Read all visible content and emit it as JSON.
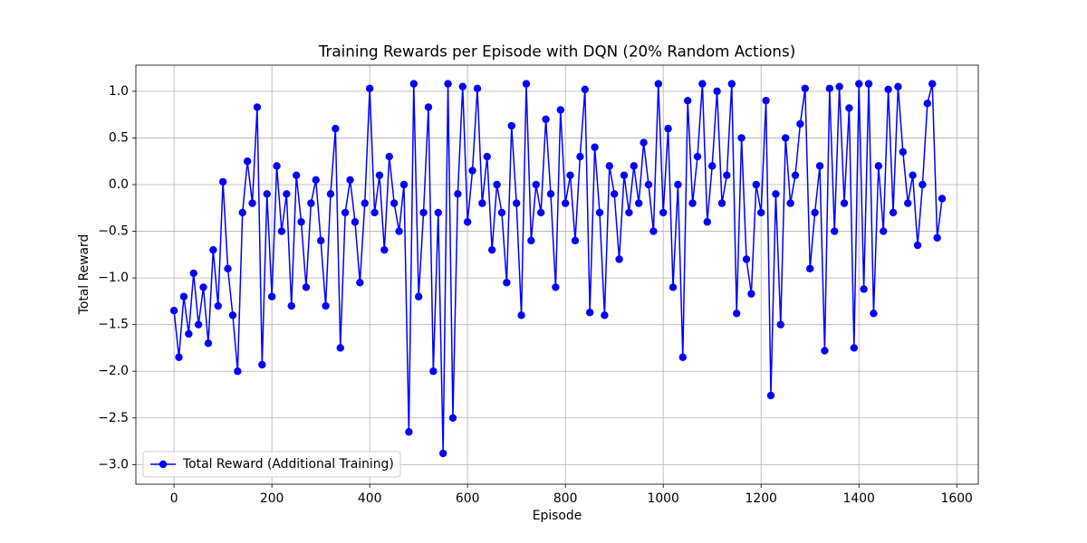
{
  "chart_data": {
    "type": "line",
    "title": "Training Rewards per Episode with DQN (20% Random Actions)",
    "x_label": "Episode",
    "y_label": "Total Reward",
    "x": [
      0,
      10,
      20,
      30,
      40,
      50,
      60,
      70,
      80,
      90,
      100,
      110,
      120,
      130,
      140,
      150,
      160,
      170,
      180,
      190,
      200,
      210,
      220,
      230,
      240,
      250,
      260,
      270,
      280,
      290,
      300,
      310,
      320,
      330,
      340,
      350,
      360,
      370,
      380,
      390,
      400,
      410,
      420,
      430,
      440,
      450,
      460,
      470,
      480,
      490,
      500,
      510,
      520,
      530,
      540,
      550,
      560,
      570,
      580,
      590,
      600,
      610,
      620,
      630,
      640,
      650,
      660,
      670,
      680,
      690,
      700,
      710,
      720,
      730,
      740,
      750,
      760,
      770,
      780,
      790,
      800,
      810,
      820,
      830,
      840,
      850,
      860,
      870,
      880,
      890,
      900,
      910,
      920,
      930,
      940,
      950,
      960,
      970,
      980,
      990,
      1000,
      1010,
      1020,
      1030,
      1040,
      1050,
      1060,
      1070,
      1080,
      1090,
      1100,
      1110,
      1120,
      1130,
      1140,
      1150,
      1160,
      1170,
      1180,
      1190,
      1200,
      1210,
      1220,
      1230,
      1240,
      1250,
      1260,
      1270,
      1280,
      1290,
      1300,
      1310,
      1320,
      1330,
      1340,
      1350,
      1360,
      1370,
      1380,
      1390,
      1400,
      1410,
      1420,
      1430,
      1440,
      1450,
      1460,
      1470,
      1480,
      1490,
      1500,
      1510,
      1520,
      1530,
      1540,
      1550,
      1560,
      1570
    ],
    "series": [
      {
        "name": "Total Reward (Additional Training)",
        "color": "#0000ff",
        "values": [
          -1.35,
          -1.85,
          -1.2,
          -1.6,
          -0.95,
          -1.5,
          -1.1,
          -1.7,
          -0.7,
          -1.3,
          0.03,
          -0.9,
          -1.4,
          -2.0,
          -0.3,
          0.25,
          -0.2,
          0.83,
          -1.93,
          -0.1,
          -1.2,
          0.2,
          -0.5,
          -0.1,
          -1.3,
          0.1,
          -0.4,
          -1.1,
          -0.2,
          0.05,
          -0.6,
          -1.3,
          -0.1,
          0.6,
          -1.75,
          -0.3,
          0.05,
          -0.4,
          -1.05,
          -0.2,
          1.03,
          -0.3,
          0.1,
          -0.7,
          0.3,
          -0.2,
          -0.5,
          0.0,
          -2.65,
          1.08,
          -1.2,
          -0.3,
          0.83,
          -2.0,
          -0.3,
          -2.88,
          1.08,
          -2.5,
          -0.1,
          1.05,
          -0.4,
          0.15,
          1.03,
          -0.2,
          0.3,
          -0.7,
          0.0,
          -0.3,
          -1.05,
          0.63,
          -0.2,
          -1.4,
          1.08,
          -0.6,
          0.0,
          -0.3,
          0.7,
          -0.1,
          -1.1,
          0.8,
          -0.2,
          0.1,
          -0.6,
          0.3,
          1.02,
          -1.37,
          0.4,
          -0.3,
          -1.4,
          0.2,
          -0.1,
          -0.8,
          0.1,
          -0.3,
          0.2,
          -0.2,
          0.45,
          0.0,
          -0.5,
          1.08,
          -0.3,
          0.6,
          -1.1,
          0.0,
          -1.85,
          0.9,
          -0.2,
          0.3,
          1.08,
          -0.4,
          0.2,
          1.0,
          -0.2,
          0.1,
          1.08,
          -1.38,
          0.5,
          -0.8,
          -1.17,
          0.0,
          -0.3,
          0.9,
          -2.26,
          -0.1,
          -1.5,
          0.5,
          -0.2,
          0.1,
          0.65,
          1.03,
          -0.9,
          -0.3,
          0.2,
          -1.78,
          1.03,
          -0.5,
          1.05,
          -0.2,
          0.82,
          -1.75,
          1.08,
          -1.12,
          1.08,
          -1.38,
          0.2,
          -0.5,
          1.02,
          -0.3,
          1.05,
          0.35,
          -0.2,
          0.1,
          -0.65,
          0.0,
          0.87,
          1.08,
          -0.57,
          -0.15
        ]
      }
    ],
    "xlim": [
      -78,
      1644
    ],
    "ylim": [
      -3.21,
      1.28
    ],
    "xticks": [
      0,
      200,
      400,
      600,
      800,
      1000,
      1200,
      1400,
      1600
    ],
    "yticks": [
      {
        "value": -3.0,
        "label": "−3.0"
      },
      {
        "value": -2.5,
        "label": "−2.5"
      },
      {
        "value": -2.0,
        "label": "−2.0"
      },
      {
        "value": -1.5,
        "label": "−1.5"
      },
      {
        "value": -1.0,
        "label": "−1.0"
      },
      {
        "value": -0.5,
        "label": "−0.5"
      },
      {
        "value": 0.0,
        "label": "0.0"
      },
      {
        "value": 0.5,
        "label": "0.5"
      },
      {
        "value": 1.0,
        "label": "1.0"
      }
    ],
    "grid": true,
    "legend": "lower left"
  }
}
